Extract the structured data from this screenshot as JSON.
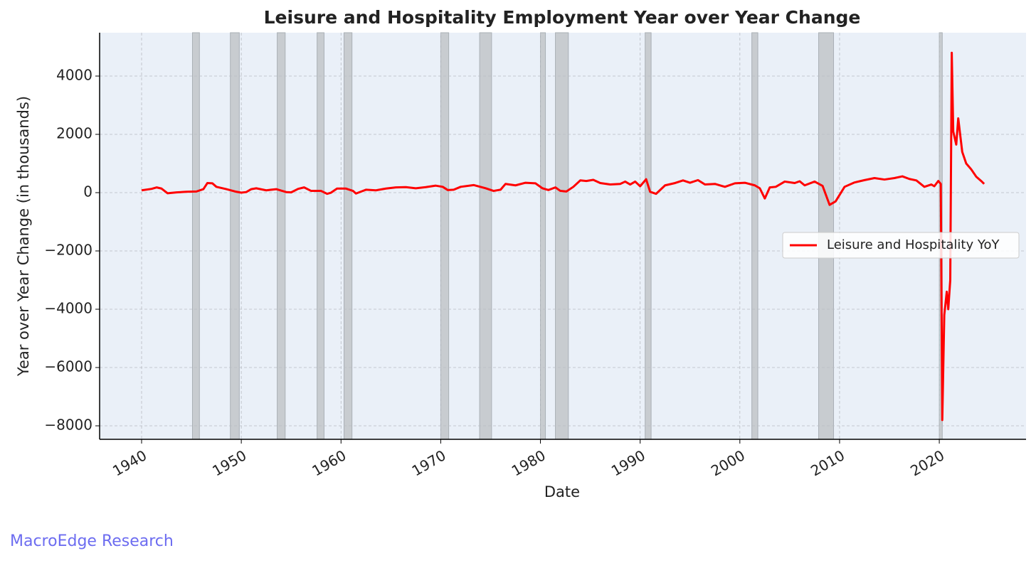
{
  "chart_data": {
    "type": "line",
    "title": "Leisure and Hospitality Employment Year over Year Change",
    "x_label": "Date",
    "y_label": "Year over Year Change (in thousands)",
    "footer": "MacroEdge Research",
    "xlim": [
      1935.79,
      2028.7
    ],
    "ylim": [
      -8463,
      5488
    ],
    "xticks": [
      1940,
      1950,
      1960,
      1970,
      1980,
      1990,
      2000,
      2010,
      2020
    ],
    "yticks": [
      {
        "value": -8000,
        "label": "−8000"
      },
      {
        "value": -6000,
        "label": "−6000"
      },
      {
        "value": -4000,
        "label": "−4000"
      },
      {
        "value": -2000,
        "label": "−2000"
      },
      0,
      2000,
      4000
    ],
    "grid": true,
    "legend_position": "center right",
    "background": "#eaf0f8",
    "shaded_regions": [
      [
        1945.1,
        1945.8
      ],
      [
        1948.9,
        1949.8
      ],
      [
        1953.6,
        1954.4
      ],
      [
        1957.6,
        1958.3
      ],
      [
        1960.3,
        1961.1
      ],
      [
        1970.0,
        1970.8
      ],
      [
        1973.9,
        1975.1
      ],
      [
        1980.0,
        1980.5
      ],
      [
        1981.5,
        1982.8
      ],
      [
        1990.5,
        1991.1
      ],
      [
        2001.2,
        2001.8
      ],
      [
        2007.9,
        2009.4
      ],
      [
        2020.0,
        2020.3
      ]
    ],
    "shade_color": "#c8ccd0",
    "x": [
      1940,
      1941,
      1941.5,
      1942,
      1942.6,
      1943.5,
      1944.5,
      1945.5,
      1946.2,
      1946.6,
      1947.1,
      1947.5,
      1948.5,
      1949.5,
      1950,
      1950.5,
      1951,
      1951.5,
      1952.5,
      1953.5,
      1954.5,
      1955,
      1955.7,
      1956.3,
      1957,
      1958,
      1958.6,
      1959,
      1959.6,
      1960.5,
      1961.2,
      1961.5,
      1962.5,
      1963.5,
      1964.5,
      1965.5,
      1966.5,
      1967.5,
      1968.5,
      1969.5,
      1970.2,
      1970.7,
      1971.3,
      1972,
      1973.3,
      1974.5,
      1975.3,
      1976,
      1976.5,
      1977.5,
      1978.5,
      1979.5,
      1980.2,
      1980.8,
      1981.5,
      1982,
      1982.6,
      1983.3,
      1984,
      1984.6,
      1985.3,
      1986,
      1987,
      1988,
      1988.5,
      1989,
      1989.5,
      1990,
      1990.6,
      1991,
      1991.6,
      1992.5,
      1993.5,
      1994.3,
      1995,
      1995.8,
      1996.5,
      1997.5,
      1998.5,
      1999.5,
      2000.5,
      2001.5,
      2002,
      2002.5,
      2003,
      2003.6,
      2004.5,
      2005.5,
      2006,
      2006.5,
      2007.5,
      2008.3,
      2009,
      2009.6,
      2010.5,
      2011.5,
      2012.5,
      2013.5,
      2014.5,
      2015.5,
      2016.3,
      2017,
      2017.7,
      2018.5,
      2019.2,
      2019.5,
      2019.9,
      2020.15,
      2020.3,
      2020.5,
      2020.75,
      2020.9,
      2021.1,
      2021.25,
      2021.4,
      2021.7,
      2021.9,
      2022.3,
      2022.7,
      2023.2,
      2023.7,
      2024.2,
      2024.5
    ],
    "series": [
      {
        "name": "Leisure and Hospitality YoY",
        "color": "#ff0000",
        "values": [
          80,
          130,
          180,
          140,
          -20,
          10,
          30,
          40,
          120,
          330,
          320,
          200,
          120,
          30,
          0,
          20,
          120,
          150,
          80,
          120,
          20,
          10,
          130,
          180,
          60,
          60,
          -40,
          0,
          140,
          140,
          60,
          -30,
          100,
          80,
          140,
          180,
          190,
          150,
          190,
          240,
          200,
          90,
          100,
          200,
          260,
          150,
          60,
          100,
          300,
          250,
          340,
          320,
          150,
          90,
          180,
          60,
          40,
          200,
          420,
          400,
          440,
          330,
          280,
          300,
          380,
          280,
          380,
          220,
          460,
          30,
          -40,
          250,
          330,
          420,
          340,
          430,
          280,
          300,
          200,
          320,
          340,
          250,
          150,
          -200,
          180,
          200,
          380,
          330,
          390,
          250,
          380,
          230,
          -420,
          -300,
          200,
          350,
          430,
          500,
          450,
          500,
          560,
          470,
          420,
          200,
          280,
          220,
          400,
          300,
          -7800,
          -4200,
          -3400,
          -4000,
          -3000,
          4800,
          2100,
          1650,
          2550,
          1400,
          1000,
          800,
          550,
          400,
          300
        ]
      }
    ]
  }
}
